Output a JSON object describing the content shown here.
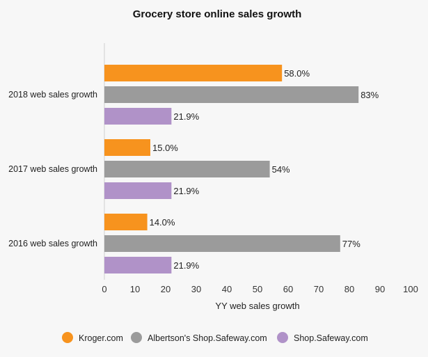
{
  "chart_data": {
    "type": "bar",
    "orientation": "horizontal",
    "title": "Grocery store online sales growth",
    "xlabel": "YY web sales growth",
    "ylabel": "",
    "xlim": [
      0,
      100
    ],
    "ticks": [
      0,
      10,
      20,
      30,
      40,
      50,
      60,
      70,
      80,
      90,
      100
    ],
    "tick_labels": [
      "0",
      "10",
      "20",
      "30",
      "40",
      "50",
      "60",
      "70",
      "80",
      "90",
      "100"
    ],
    "categories": [
      "2018 web sales growth",
      "2017 web sales growth",
      "2016 web sales growth"
    ],
    "series": [
      {
        "name": "Kroger.com",
        "color": "#f7931e",
        "values": [
          58.0,
          15.0,
          14.0
        ],
        "labels": [
          "58.0%",
          "15.0%",
          "14.0%"
        ]
      },
      {
        "name": "Albertson's Shop.Safeway.com",
        "color": "#9b9b9b",
        "values": [
          83,
          54,
          77
        ],
        "labels": [
          "83%",
          "54%",
          "77%"
        ]
      },
      {
        "name": "Shop.Safeway.com",
        "color": "#b092c8",
        "values": [
          21.9,
          21.9,
          21.9
        ],
        "labels": [
          "21.9%",
          "21.9%",
          "21.9%"
        ]
      }
    ],
    "grid": false,
    "legend_position": "bottom"
  }
}
